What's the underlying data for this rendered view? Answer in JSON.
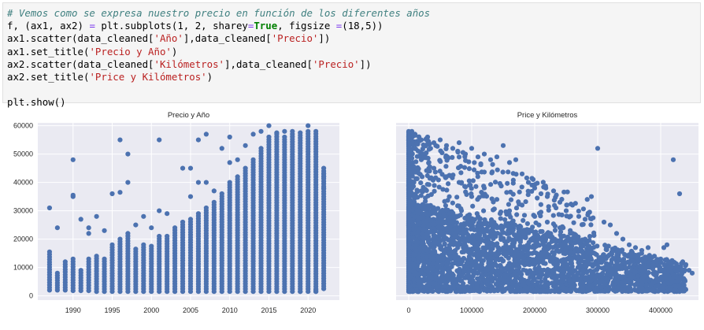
{
  "code_cell": {
    "lines": [
      [
        {
          "t": "# Vemos como se expresa nuestro precio en función de los diferentes años",
          "c": "comment"
        }
      ],
      [
        {
          "t": "f, (ax1, ax2) "
        },
        {
          "t": "=",
          "c": "op"
        },
        {
          "t": " plt.subplots(1, 2, sharey"
        },
        {
          "t": "=",
          "c": "op"
        },
        {
          "t": "True",
          "c": "kw"
        },
        {
          "t": ", figsize "
        },
        {
          "t": "=",
          "c": "op"
        },
        {
          "t": "(18,5))"
        }
      ],
      [
        {
          "t": "ax1.scatter(data_cleaned["
        },
        {
          "t": "'Año'",
          "c": "str"
        },
        {
          "t": "],data_cleaned["
        },
        {
          "t": "'Precio'",
          "c": "str"
        },
        {
          "t": "])"
        }
      ],
      [
        {
          "t": "ax1.set_title("
        },
        {
          "t": "'Precio y Año'",
          "c": "str"
        },
        {
          "t": ")"
        }
      ],
      [
        {
          "t": "ax2.scatter(data_cleaned["
        },
        {
          "t": "'Kilómetros'",
          "c": "str"
        },
        {
          "t": "],data_cleaned["
        },
        {
          "t": "'Precio'",
          "c": "str"
        },
        {
          "t": "])"
        }
      ],
      [
        {
          "t": "ax2.set_title("
        },
        {
          "t": "'Price y Kilómetros'",
          "c": "str"
        },
        {
          "t": ")"
        }
      ],
      [],
      [
        {
          "t": "plt.show()"
        }
      ]
    ]
  },
  "colors": {
    "point": "#4c72b0",
    "axes_bg": "#eaeaf2",
    "grid": "#ffffff",
    "tick_text": "#262626"
  },
  "chart_data": [
    {
      "type": "scatter",
      "title": "Precio y Año",
      "xlabel": "",
      "ylabel": "",
      "xlim": [
        1985.5,
        2024
      ],
      "ylim": [
        -1500,
        61000
      ],
      "xticks": [
        1990,
        1995,
        2000,
        2005,
        2010,
        2015,
        2020
      ],
      "yticks": [
        0,
        10000,
        20000,
        30000,
        40000,
        50000,
        60000
      ],
      "xtick_labels": [
        "1990",
        "1995",
        "2000",
        "2005",
        "2010",
        "2015",
        "2020"
      ],
      "ytick_labels": [
        "0",
        "10000",
        "20000",
        "30000",
        "40000",
        "50000",
        "60000"
      ],
      "grid": true,
      "columns": [
        {
          "x": 1987,
          "min": 2000,
          "max": 15500
        },
        {
          "x": 1988,
          "min": 2000,
          "max": 8000
        },
        {
          "x": 1989,
          "min": 2000,
          "max": 12000
        },
        {
          "x": 1990,
          "min": 1800,
          "max": 13000
        },
        {
          "x": 1991,
          "min": 1800,
          "max": 9000
        },
        {
          "x": 1992,
          "min": 1800,
          "max": 13000
        },
        {
          "x": 1993,
          "min": 1500,
          "max": 14000
        },
        {
          "x": 1994,
          "min": 1500,
          "max": 13000
        },
        {
          "x": 1995,
          "min": 1500,
          "max": 18000
        },
        {
          "x": 1996,
          "min": 1500,
          "max": 20000
        },
        {
          "x": 1997,
          "min": 1500,
          "max": 22000
        },
        {
          "x": 1998,
          "min": 1500,
          "max": 16500
        },
        {
          "x": 1999,
          "min": 1500,
          "max": 18000
        },
        {
          "x": 2000,
          "min": 1500,
          "max": 17500
        },
        {
          "x": 2001,
          "min": 1500,
          "max": 21000
        },
        {
          "x": 2002,
          "min": 1500,
          "max": 21000
        },
        {
          "x": 2003,
          "min": 1500,
          "max": 24000
        },
        {
          "x": 2004,
          "min": 1500,
          "max": 26000
        },
        {
          "x": 2005,
          "min": 1500,
          "max": 27000
        },
        {
          "x": 2006,
          "min": 1500,
          "max": 29000
        },
        {
          "x": 2007,
          "min": 1500,
          "max": 31000
        },
        {
          "x": 2008,
          "min": 1500,
          "max": 33000
        },
        {
          "x": 2009,
          "min": 1500,
          "max": 36000
        },
        {
          "x": 2010,
          "min": 1500,
          "max": 40000
        },
        {
          "x": 2011,
          "min": 1500,
          "max": 42000
        },
        {
          "x": 2012,
          "min": 1500,
          "max": 45000
        },
        {
          "x": 2013,
          "min": 1500,
          "max": 48000
        },
        {
          "x": 2014,
          "min": 1500,
          "max": 52000
        },
        {
          "x": 2015,
          "min": 1500,
          "max": 56000
        },
        {
          "x": 2016,
          "min": 1500,
          "max": 57000
        },
        {
          "x": 2017,
          "min": 1500,
          "max": 56000
        },
        {
          "x": 2018,
          "min": 1500,
          "max": 57000
        },
        {
          "x": 2019,
          "min": 1500,
          "max": 57500
        },
        {
          "x": 2020,
          "min": 1500,
          "max": 58000
        },
        {
          "x": 2021,
          "min": 1500,
          "max": 58000
        },
        {
          "x": 2022,
          "min": 2500,
          "max": 44000
        }
      ],
      "points": [
        [
          1987,
          31000
        ],
        [
          1988,
          24000
        ],
        [
          1990,
          48000
        ],
        [
          1990,
          35500
        ],
        [
          1990,
          35000
        ],
        [
          1991,
          27000
        ],
        [
          1992,
          22000
        ],
        [
          1992,
          24000
        ],
        [
          1993,
          28000
        ],
        [
          1994,
          23000
        ],
        [
          1995,
          36000
        ],
        [
          1996,
          55000
        ],
        [
          1996,
          36500
        ],
        [
          1997,
          50000
        ],
        [
          1997,
          40000
        ],
        [
          1998,
          25000
        ],
        [
          1999,
          28000
        ],
        [
          2000,
          24000
        ],
        [
          2001,
          55000
        ],
        [
          2001,
          30000
        ],
        [
          2002,
          29000
        ],
        [
          2004,
          45000
        ],
        [
          2005,
          45000
        ],
        [
          2005,
          35000
        ],
        [
          2006,
          55000
        ],
        [
          2006,
          40000
        ],
        [
          2007,
          57000
        ],
        [
          2007,
          40000
        ],
        [
          2008,
          37000
        ],
        [
          2009,
          52000
        ],
        [
          2010,
          56000
        ],
        [
          2010,
          47000
        ],
        [
          2011,
          48000
        ],
        [
          2012,
          53000
        ],
        [
          2013,
          57000
        ],
        [
          2014,
          58000
        ],
        [
          2015,
          60000
        ],
        [
          2016,
          57500
        ],
        [
          2017,
          58000
        ],
        [
          2018,
          58000
        ],
        [
          2020,
          60000
        ],
        [
          2022,
          45000
        ],
        [
          2022,
          43000
        ],
        [
          2022,
          42000
        ],
        [
          2022,
          38000
        ],
        [
          2021,
          2000
        ],
        [
          2021,
          1500
        ],
        [
          2019,
          1500
        ]
      ]
    },
    {
      "type": "scatter",
      "title": "Price y Kilómetros",
      "xlabel": "",
      "ylabel": "",
      "xlim": [
        -20000,
        460000
      ],
      "ylim": [
        -1500,
        61000
      ],
      "xticks": [
        0,
        100000,
        200000,
        300000,
        400000
      ],
      "xtick_labels": [
        "0",
        "100000",
        "200000",
        "300000",
        "400000"
      ],
      "grid": true,
      "points": [
        [
          0,
          58000
        ],
        [
          0,
          56000
        ],
        [
          0,
          54000
        ],
        [
          0,
          50000
        ],
        [
          5000,
          58000
        ],
        [
          10000,
          57000
        ],
        [
          20000,
          55000
        ],
        [
          30000,
          56000
        ],
        [
          40000,
          54000
        ],
        [
          50000,
          55000
        ],
        [
          60000,
          53000
        ],
        [
          70000,
          52000
        ],
        [
          80000,
          54000
        ],
        [
          90000,
          50000
        ],
        [
          100000,
          52000
        ],
        [
          110000,
          49000
        ],
        [
          120000,
          50000
        ],
        [
          130000,
          48000
        ],
        [
          140000,
          49000
        ],
        [
          150000,
          53000
        ],
        [
          160000,
          47000
        ],
        [
          170000,
          48000
        ],
        [
          180000,
          43000
        ],
        [
          190000,
          40000
        ],
        [
          200000,
          38000
        ],
        [
          210000,
          36000
        ],
        [
          220000,
          35000
        ],
        [
          230000,
          37000
        ],
        [
          240000,
          33000
        ],
        [
          250000,
          30000
        ],
        [
          260000,
          32000
        ],
        [
          270000,
          28000
        ],
        [
          280000,
          27000
        ],
        [
          290000,
          35000
        ],
        [
          300000,
          52000
        ],
        [
          310000,
          26000
        ],
        [
          320000,
          25000
        ],
        [
          330000,
          22000
        ],
        [
          340000,
          20000
        ],
        [
          350000,
          18000
        ],
        [
          360000,
          17000
        ],
        [
          370000,
          16000
        ],
        [
          380000,
          17000
        ],
        [
          390000,
          14000
        ],
        [
          400000,
          13000
        ],
        [
          405000,
          17000
        ],
        [
          410000,
          18000
        ],
        [
          420000,
          48000
        ],
        [
          430000,
          36000
        ],
        [
          435000,
          12000
        ],
        [
          440000,
          11000
        ],
        [
          445000,
          9000
        ],
        [
          450000,
          8000
        ],
        [
          415000,
          6000
        ],
        [
          395000,
          5000
        ],
        [
          375000,
          7000
        ],
        [
          355000,
          9000
        ],
        [
          100000,
          35000
        ],
        [
          120000,
          38000
        ],
        [
          140000,
          34000
        ],
        [
          160000,
          30000
        ],
        [
          180000,
          32000
        ],
        [
          60000,
          42000
        ],
        [
          80000,
          40000
        ],
        [
          40000,
          45000
        ],
        [
          20000,
          48000
        ],
        [
          200000,
          28000
        ],
        [
          220000,
          26000
        ],
        [
          240000,
          24000
        ],
        [
          260000,
          22000
        ],
        [
          280000,
          20000
        ]
      ]
    }
  ]
}
